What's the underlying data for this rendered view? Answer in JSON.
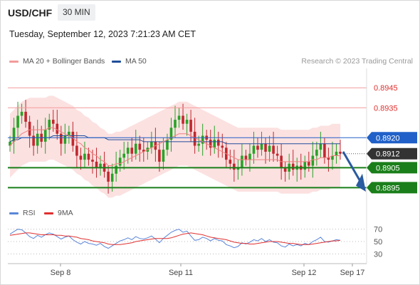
{
  "header": {
    "symbol": "USD/CHF",
    "timeframe": "30 MIN",
    "datetime": "Tuesday, September 12, 2023 7:21:23 AM CET",
    "credit": "Research © 2023 Trading Central"
  },
  "legend": {
    "ma20": "MA 20 + Bollinger Bands",
    "ma50": "MA 50",
    "rsi": "RSI",
    "ma9": "9MA"
  },
  "colors": {
    "ma20": "#f07f7f",
    "ma50": "#1f4e99",
    "band": "#fbdcdc",
    "bull": "#27a327",
    "bear": "#c0282e",
    "resistance": "#f39a9a",
    "pivot": "#2060c8",
    "support": "#1a7f1a",
    "arrow": "#2a5aa0",
    "rsi": "#5b86d9",
    "rsi_ma": "#e03030"
  },
  "chart_data": [
    {
      "type": "line",
      "title": "USD/CHF",
      "xlabel": "",
      "ylabel": "",
      "x_ticks": [
        "Sep 8",
        "Sep 11",
        "Sep 12",
        "Sep 17"
      ],
      "ylim": [
        0.8888,
        0.8954
      ],
      "levels": [
        {
          "label": "0.8945",
          "value": 0.8945,
          "kind": "resistance"
        },
        {
          "label": "0.8935",
          "value": 0.8935,
          "kind": "resistance"
        },
        {
          "label": "0.8920",
          "value": 0.892,
          "kind": "pivot"
        },
        {
          "label": "0.8912",
          "value": 0.8912,
          "kind": "last"
        },
        {
          "label": "0.8905",
          "value": 0.8905,
          "kind": "support"
        },
        {
          "label": "0.8895",
          "value": 0.8895,
          "kind": "support"
        }
      ],
      "close": [
        0.8918,
        0.8925,
        0.8931,
        0.8933,
        0.8928,
        0.8921,
        0.8916,
        0.8922,
        0.8918,
        0.8924,
        0.8929,
        0.8927,
        0.8922,
        0.8917,
        0.8921,
        0.8923,
        0.8916,
        0.8911,
        0.8909,
        0.8912,
        0.8909,
        0.8908,
        0.8905,
        0.8907,
        0.8903,
        0.8898,
        0.8902,
        0.8906,
        0.891,
        0.8912,
        0.8915,
        0.8912,
        0.8917,
        0.8914,
        0.8913,
        0.8915,
        0.8918,
        0.8914,
        0.8908,
        0.8914,
        0.8919,
        0.8925,
        0.8929,
        0.8931,
        0.8927,
        0.8929,
        0.8923,
        0.8916,
        0.8917,
        0.8921,
        0.8919,
        0.8915,
        0.8919,
        0.8916,
        0.8915,
        0.8909,
        0.8907,
        0.8904,
        0.8905,
        0.8911,
        0.8909,
        0.8912,
        0.8916,
        0.8914,
        0.8917,
        0.8913,
        0.8916,
        0.8912,
        0.8911,
        0.8905,
        0.8903,
        0.8907,
        0.8904,
        0.8906,
        0.8904,
        0.8908,
        0.8906,
        0.8911,
        0.8914,
        0.8917,
        0.891,
        0.8909,
        0.8911,
        0.8913,
        0.8912
      ],
      "series": [
        {
          "name": "MA 20",
          "values": [
            0.8916,
            0.8918,
            0.892,
            0.8922,
            0.8923,
            0.8924,
            0.8924,
            0.8924,
            0.8924,
            0.8924,
            0.8925,
            0.8925,
            0.8924,
            0.8923,
            0.8922,
            0.8921,
            0.892,
            0.8918,
            0.8917,
            0.8915,
            0.8914,
            0.8912,
            0.8911,
            0.8909,
            0.8908,
            0.8906,
            0.8906,
            0.8907,
            0.8907,
            0.8908,
            0.8909,
            0.891,
            0.8911,
            0.8912,
            0.8913,
            0.8914,
            0.8915,
            0.8916,
            0.8917,
            0.8918,
            0.8919,
            0.892,
            0.8921,
            0.8922,
            0.8922,
            0.8922,
            0.8921,
            0.892,
            0.8919,
            0.8918,
            0.8917,
            0.8916,
            0.8915,
            0.8914,
            0.8913,
            0.8912,
            0.8911,
            0.891,
            0.8909,
            0.8909,
            0.8909,
            0.8909,
            0.8909,
            0.8909,
            0.8909,
            0.8909,
            0.8909,
            0.8909,
            0.8909,
            0.8908,
            0.8908,
            0.8908,
            0.8908,
            0.8908,
            0.8908,
            0.8908,
            0.8908,
            0.8909,
            0.8909,
            0.891,
            0.891,
            0.891,
            0.8911,
            0.8911,
            0.8911
          ]
        },
        {
          "name": "MA 50",
          "values": [
            0.8918,
            0.8919,
            0.8919,
            0.892,
            0.892,
            0.892,
            0.892,
            0.892,
            0.892,
            0.892,
            0.892,
            0.8921,
            0.8921,
            0.8921,
            0.8921,
            0.8921,
            0.8921,
            0.8921,
            0.8921,
            0.8921,
            0.892,
            0.892,
            0.892,
            0.892,
            0.892,
            0.8919,
            0.8919,
            0.8919,
            0.8919,
            0.8919,
            0.8919,
            0.8919,
            0.8919,
            0.8919,
            0.8918,
            0.8918,
            0.8918,
            0.8918,
            0.8918,
            0.8918,
            0.8918,
            0.8918,
            0.8918,
            0.8918,
            0.8918,
            0.8918,
            0.8918,
            0.8918,
            0.8918,
            0.8918,
            0.8918,
            0.8918,
            0.8918,
            0.8918,
            0.8918,
            0.8917,
            0.8917,
            0.8917,
            0.8917,
            0.8917,
            0.8917,
            0.8917,
            0.8917,
            0.8917,
            0.8917,
            0.8917,
            0.8917,
            0.8917,
            0.8917,
            0.8917,
            0.8917,
            0.8917,
            0.8917,
            0.8917,
            0.8917,
            0.8917,
            0.8917,
            0.8917,
            0.8917,
            0.8917,
            0.8917,
            0.8917,
            0.8917,
            0.8917,
            0.8917
          ]
        }
      ]
    },
    {
      "type": "line",
      "title": "RSI",
      "xlabel": "",
      "ylabel": "",
      "ylim": [
        20,
        80
      ],
      "y_ticks": [
        "70",
        "50",
        "30"
      ],
      "series": [
        {
          "name": "RSI",
          "values": [
            62,
            66,
            70,
            69,
            64,
            58,
            55,
            60,
            57,
            61,
            64,
            62,
            58,
            54,
            57,
            59,
            53,
            49,
            46,
            50,
            47,
            46,
            44,
            47,
            42,
            39,
            43,
            47,
            51,
            53,
            56,
            53,
            58,
            55,
            54,
            56,
            59,
            54,
            48,
            55,
            60,
            65,
            68,
            70,
            65,
            67,
            59,
            52,
            53,
            57,
            55,
            51,
            55,
            52,
            51,
            45,
            43,
            40,
            42,
            48,
            46,
            49,
            53,
            51,
            55,
            50,
            53,
            49,
            48,
            43,
            41,
            46,
            43,
            45,
            43,
            47,
            45,
            50,
            53,
            57,
            50,
            49,
            51,
            53,
            52
          ]
        },
        {
          "name": "9MA",
          "values": [
            60,
            61,
            62,
            63,
            64,
            64,
            63,
            62,
            61,
            61,
            61,
            61,
            60,
            60,
            59,
            59,
            58,
            57,
            55,
            54,
            53,
            51,
            50,
            49,
            48,
            46,
            45,
            45,
            45,
            46,
            47,
            48,
            50,
            51,
            52,
            53,
            54,
            55,
            55,
            55,
            55,
            56,
            58,
            60,
            62,
            63,
            64,
            63,
            62,
            61,
            59,
            57,
            56,
            55,
            54,
            53,
            51,
            49,
            48,
            47,
            47,
            46,
            46,
            47,
            48,
            49,
            50,
            50,
            50,
            49,
            48,
            47,
            47,
            46,
            45,
            45,
            45,
            46,
            47,
            48,
            49,
            50,
            51,
            51,
            52
          ]
        }
      ]
    }
  ]
}
